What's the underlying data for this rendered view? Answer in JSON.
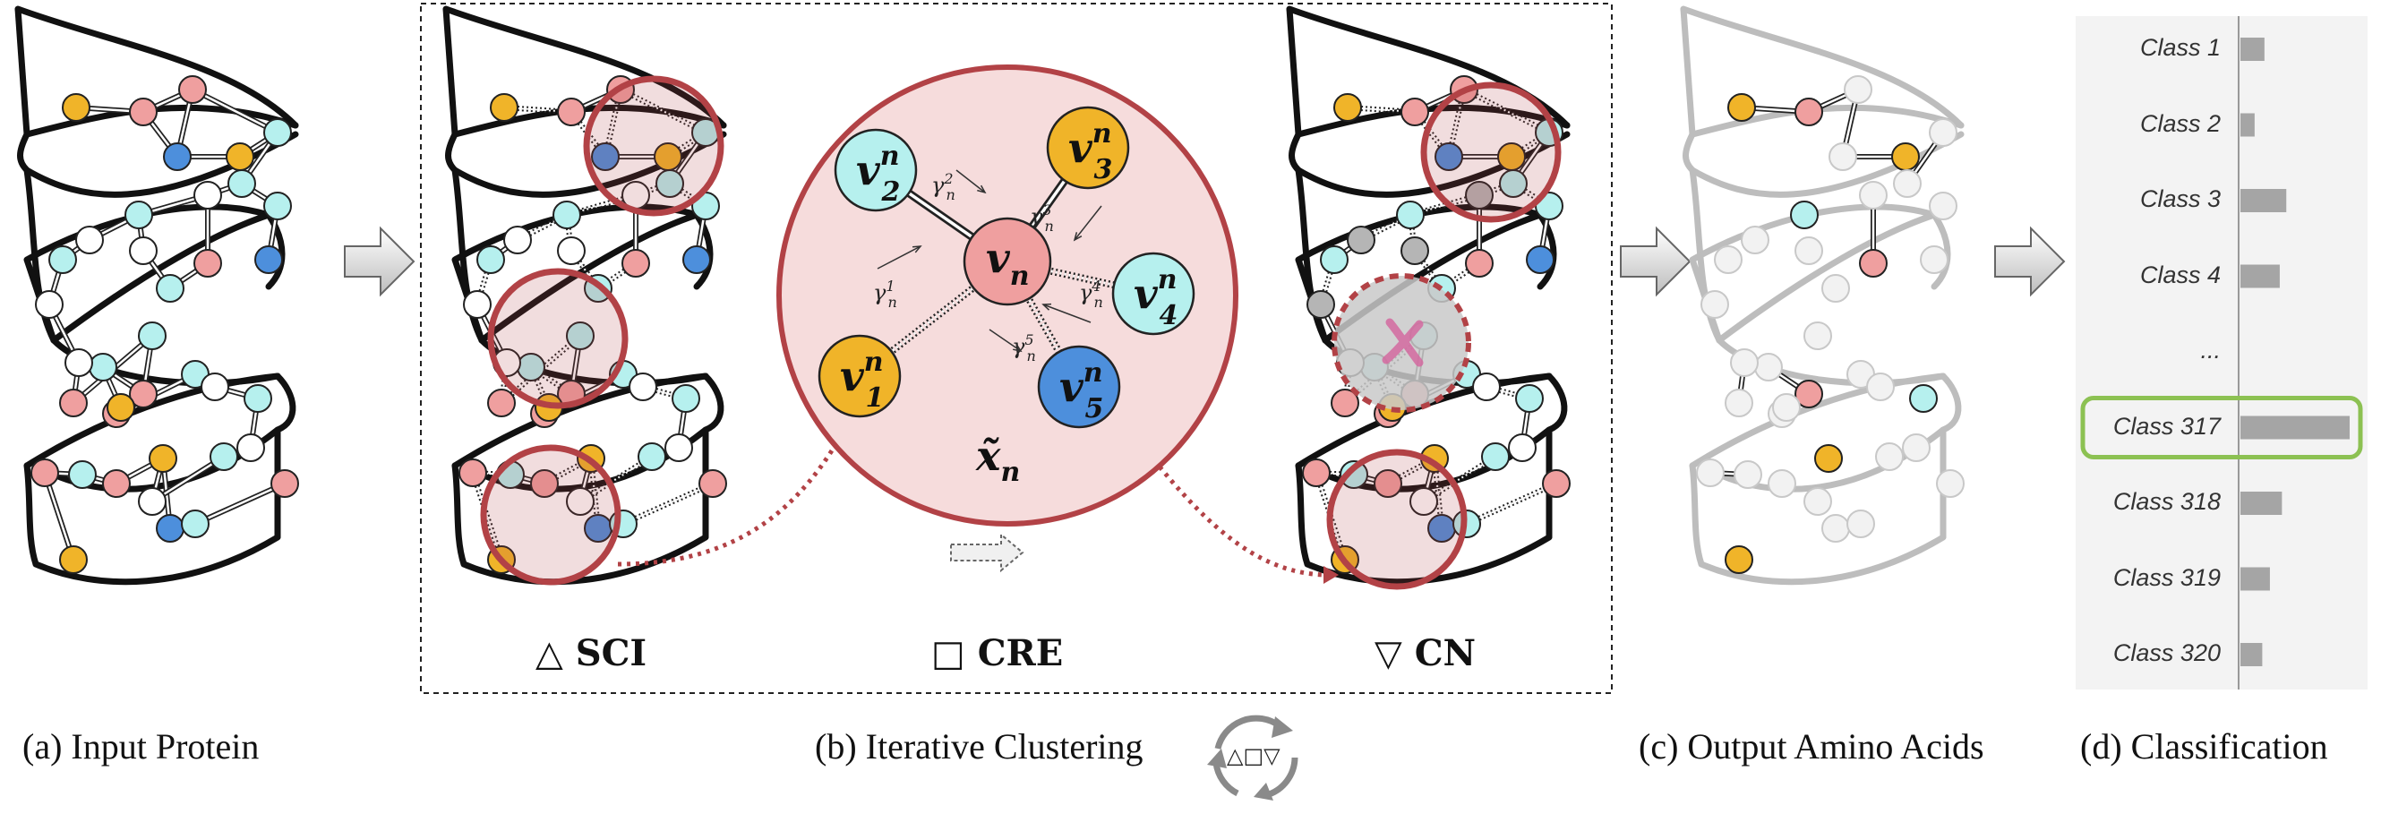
{
  "captions": {
    "input": "(a) Input Protein",
    "clustering": "(b) Iterative Clustering",
    "output": "(c) Output Amino Acids",
    "classification": "(d) Classification"
  },
  "steps": {
    "sci": "△ SCI",
    "cre": "□ CRE",
    "cn": "▽ CN",
    "cycle_symbols": "△□▽"
  },
  "zoom": {
    "center": "v",
    "nodes": [
      "v",
      "v",
      "v",
      "v",
      "v"
    ],
    "node_indices": [
      "2",
      "3",
      "4",
      "1",
      "5"
    ],
    "superscript": "n",
    "center_sub": "n",
    "weights": [
      "γ",
      "γ",
      "γ",
      "γ",
      "γ"
    ],
    "weight_sup": [
      "2",
      "3",
      "4",
      "1",
      "5"
    ],
    "weight_sub": "n",
    "cluster_symbol": "x̃",
    "cluster_sub": "n"
  },
  "classification": {
    "labels": [
      "Class 1",
      "Class 2",
      "Class 3",
      "Class 4",
      "...",
      "Class 317",
      "Class 318",
      "Class 319",
      "Class 320"
    ],
    "scores": [
      0.22,
      0.13,
      0.42,
      0.36,
      null,
      1.0,
      0.38,
      0.27,
      0.2
    ],
    "highlight_index": 5
  },
  "colors": {
    "yellow": "#f0b429",
    "pink": "#ef9f9f",
    "cyan": "#b6f0ee",
    "blue": "#4d8fdc",
    "white": "#ffffff",
    "gray": "#b5b5b5",
    "circle": "#b24246",
    "circle_fill": "#f6dcdc",
    "highlight": "#8cc152",
    "bar": "#a5a5a5"
  }
}
